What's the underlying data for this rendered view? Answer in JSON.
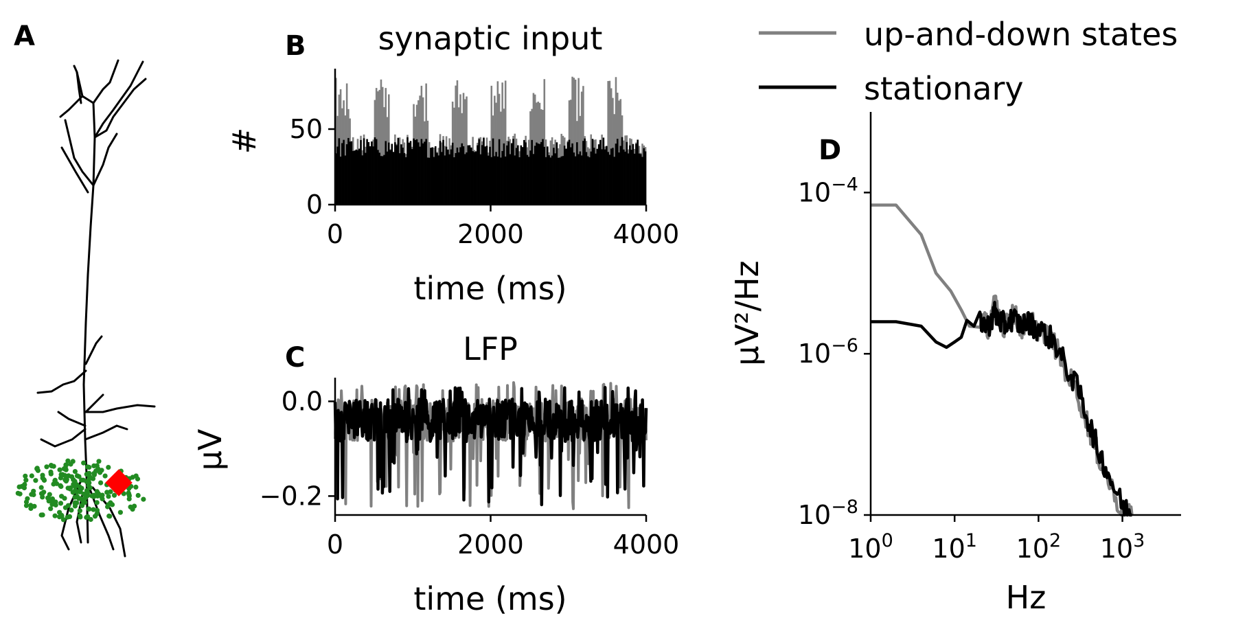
{
  "panels": {
    "a": {
      "letter": "A"
    },
    "b": {
      "letter": "B"
    },
    "c": {
      "letter": "C"
    },
    "d": {
      "letter": "D"
    }
  },
  "legend": [
    {
      "label": "up-and-down states",
      "color": "#808080"
    },
    {
      "label": "stationary",
      "color": "#000000"
    }
  ],
  "colors": {
    "dendrite": "#000000",
    "basal_synapses": "#228B22",
    "electrode": "#ff0000",
    "gray_series": "#808080",
    "black_series": "#000000"
  },
  "chart_data": [
    {
      "panel": "A",
      "type": "morphology",
      "description_icon": "neuron-morphology"
    },
    {
      "panel": "B",
      "type": "histogram",
      "title": "synaptic input",
      "xlabel": "time (ms)",
      "ylabel": "#",
      "xlim": [
        0,
        4000
      ],
      "ylim": [
        0,
        90
      ],
      "xticks": [
        "0",
        "2000",
        "4000"
      ],
      "yticks": [
        "0",
        "50"
      ],
      "series": [
        {
          "name": "up-and-down states",
          "color": "#808080",
          "up_state_windows_ms": [
            [
              0,
              200
            ],
            [
              500,
              700
            ],
            [
              1000,
              1200
            ],
            [
              1500,
              1700
            ],
            [
              2000,
              2200
            ],
            [
              2500,
              2700
            ],
            [
              3000,
              3200
            ],
            [
              3500,
              3700
            ]
          ],
          "up_level": 70,
          "down_level": 40
        },
        {
          "name": "stationary",
          "color": "#000000",
          "level": 38
        }
      ]
    },
    {
      "panel": "C",
      "type": "line",
      "title": "LFP",
      "xlabel": "time (ms)",
      "ylabel": "μV",
      "xlim": [
        0,
        4000
      ],
      "ylim": [
        -0.24,
        0.05
      ],
      "xticks": [
        "0",
        "2000",
        "4000"
      ],
      "yticks": [
        {
          "value": 0.0,
          "label": "0.0"
        },
        {
          "value": -0.2,
          "label": "−0.2"
        }
      ],
      "series": [
        {
          "name": "up-and-down states",
          "color": "#808080",
          "min": -0.23,
          "max": 0.04
        },
        {
          "name": "stationary",
          "color": "#000000",
          "min": -0.22,
          "max": 0.03
        }
      ]
    },
    {
      "panel": "D",
      "type": "line",
      "scale": "loglog",
      "xlabel": "Hz",
      "ylabel": "μV²/Hz",
      "xlim": [
        1,
        5000
      ],
      "ylim": [
        1e-08,
        0.001
      ],
      "xticks": [
        {
          "value": 1,
          "base": "10",
          "exp": "0"
        },
        {
          "value": 10,
          "base": "10",
          "exp": "1"
        },
        {
          "value": 100,
          "base": "10",
          "exp": "2"
        },
        {
          "value": 1000,
          "base": "10",
          "exp": "3"
        }
      ],
      "yticks": [
        {
          "value": 0.0001,
          "base": "10",
          "exp": "−4"
        },
        {
          "value": 1e-06,
          "base": "10",
          "exp": "−6"
        },
        {
          "value": 1e-08,
          "base": "10",
          "exp": "−8"
        }
      ],
      "series": [
        {
          "name": "up-and-down states",
          "color": "#808080",
          "x": [
            1,
            2,
            4,
            6,
            9,
            12,
            15,
            20,
            25,
            30,
            35,
            40,
            50,
            60,
            80,
            100,
            150,
            200,
            300,
            400,
            500,
            700,
            1000,
            1300
          ],
          "y": [
            7e-05,
            7e-05,
            3e-05,
            1e-05,
            6e-06,
            3.5e-06,
            2.2e-06,
            2.8e-06,
            2.2e-06,
            4e-06,
            3e-06,
            2e-06,
            3.5e-06,
            2e-06,
            2.6e-06,
            2e-06,
            1.4e-06,
            7e-07,
            3e-07,
            1.2e-07,
            6e-08,
            2.5e-08,
            1.1e-08,
            9e-09
          ]
        },
        {
          "name": "stationary",
          "color": "#000000",
          "x": [
            1,
            2,
            4,
            6,
            8,
            10,
            12,
            14,
            17,
            20,
            25,
            30,
            35,
            40,
            50,
            60,
            80,
            100,
            150,
            200,
            300,
            400,
            500,
            700,
            1000,
            1300
          ],
          "y": [
            2.5e-06,
            2.5e-06,
            2.2e-06,
            1.4e-06,
            1.2e-06,
            1.4e-06,
            1.6e-06,
            2.6e-06,
            2.2e-06,
            2.6e-06,
            2.2e-06,
            3.2e-06,
            2.5e-06,
            2.3e-06,
            2.8e-06,
            2.3e-06,
            2.4e-06,
            2e-06,
            1.5e-06,
            8e-07,
            3.5e-07,
            1.4e-07,
            7e-08,
            3e-08,
            1.3e-08,
            1e-08
          ]
        }
      ]
    }
  ]
}
